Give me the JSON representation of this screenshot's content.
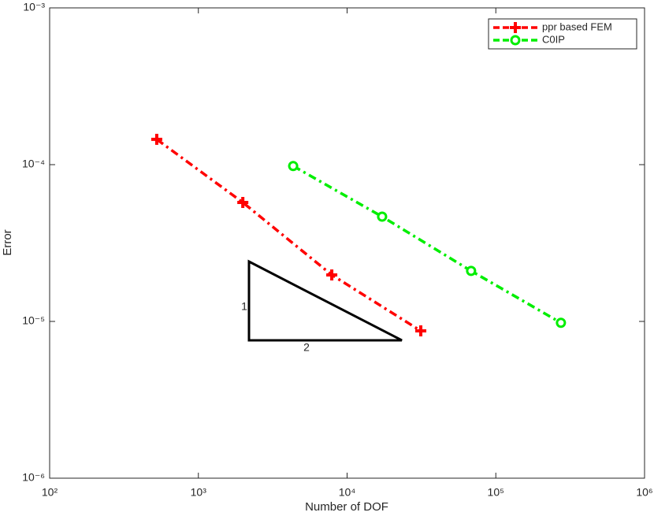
{
  "chart_data": {
    "type": "line",
    "x_label": "Number of DOF",
    "y_label": "Error",
    "xscale": "log",
    "yscale": "log",
    "xlim": [
      100,
      1000000
    ],
    "ylim": [
      1e-06,
      0.001
    ],
    "xticks": [
      {
        "value": 100,
        "label": "10²"
      },
      {
        "value": 1000,
        "label": "10³"
      },
      {
        "value": 10000,
        "label": "10⁴"
      },
      {
        "value": 100000,
        "label": "10⁵"
      },
      {
        "value": 1000000,
        "label": "10⁶"
      }
    ],
    "yticks": [
      {
        "value": 1e-06,
        "label": "10⁻⁶"
      },
      {
        "value": 1e-05,
        "label": "10⁻⁵"
      },
      {
        "value": 0.0001,
        "label": "10⁻⁴"
      },
      {
        "value": 0.001,
        "label": "10⁻³"
      }
    ],
    "legend": "northeast",
    "series": [
      {
        "name": "ppr based FEM",
        "color": "#ff0000",
        "marker": "plus",
        "x": [
          525,
          1990,
          7890,
          31300
        ],
        "values": [
          0.000145,
          5.74e-05,
          1.98e-05,
          8.7e-06
        ]
      },
      {
        "name": "C0IP",
        "color": "#00ee00",
        "marker": "circle",
        "x": [
          4340,
          17200,
          68200,
          274000
        ],
        "values": [
          9.8e-05,
          4.66e-05,
          2.1e-05,
          9.8e-06
        ]
      }
    ],
    "annotations": [
      "1",
      "2"
    ]
  }
}
